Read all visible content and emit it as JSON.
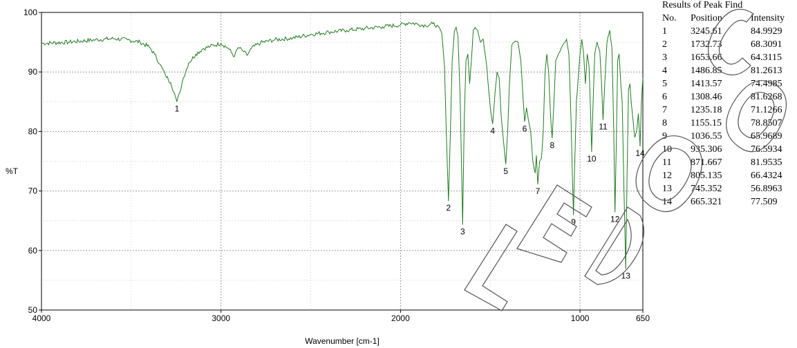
{
  "chart_data": {
    "type": "line",
    "xlabel": "Wavenumber [cm-1]",
    "ylabel": "%T",
    "xlim": [
      4000,
      650
    ],
    "ylim": [
      50,
      100
    ],
    "x_ticks": [
      4000,
      3000,
      2000,
      1000,
      650
    ],
    "y_ticks": [
      50,
      60,
      70,
      80,
      90,
      100
    ],
    "x_minor_grid": [
      3500,
      2500,
      1500
    ],
    "y_minor_grid": [
      55,
      65,
      75,
      85,
      95
    ],
    "grid": true,
    "series_color": "#1f7a1f",
    "x_reversed": true,
    "baseline_points": [
      [
        4000,
        94.8
      ],
      [
        3850,
        95.0
      ],
      [
        3700,
        95.4
      ],
      [
        3600,
        95.6
      ],
      [
        3520,
        95.4
      ],
      [
        3450,
        95.0
      ],
      [
        3400,
        94.2
      ],
      [
        3370,
        93.0
      ],
      [
        3340,
        91.3
      ],
      [
        3310,
        89.5
      ],
      [
        3280,
        88.2
      ],
      [
        3260,
        86.5
      ],
      [
        3245.61,
        84.99
      ],
      [
        3230,
        86.5
      ],
      [
        3210,
        89.0
      ],
      [
        3180,
        91.5
      ],
      [
        3140,
        93.0
      ],
      [
        3100,
        93.9
      ],
      [
        3060,
        94.3
      ],
      [
        3000,
        94.8
      ],
      [
        2960,
        94.0
      ],
      [
        2925,
        92.6
      ],
      [
        2905,
        94.1
      ],
      [
        2880,
        93.6
      ],
      [
        2855,
        92.8
      ],
      [
        2830,
        94.0
      ],
      [
        2780,
        94.9
      ],
      [
        2700,
        95.4
      ],
      [
        2600,
        95.7
      ],
      [
        2500,
        96.3
      ],
      [
        2400,
        96.7
      ],
      [
        2300,
        97.0
      ],
      [
        2200,
        97.3
      ],
      [
        2100,
        97.6
      ],
      [
        2000,
        97.9
      ],
      [
        1950,
        98.3
      ],
      [
        1900,
        98.0
      ],
      [
        1860,
        97.8
      ],
      [
        1820,
        98.1
      ],
      [
        1790,
        97.7
      ],
      [
        1770,
        96.5
      ],
      [
        1755,
        91.0
      ],
      [
        1745,
        80.0
      ],
      [
        1732.73,
        68.31
      ],
      [
        1722,
        80.0
      ],
      [
        1712,
        92.0
      ],
      [
        1700,
        96.8
      ],
      [
        1690,
        97.5
      ],
      [
        1680,
        96.0
      ],
      [
        1668,
        86.0
      ],
      [
        1653.66,
        64.31
      ],
      [
        1645,
        82.0
      ],
      [
        1635,
        92.0
      ],
      [
        1625,
        93.0
      ],
      [
        1615,
        88.0
      ],
      [
        1605,
        92.0
      ],
      [
        1595,
        97.0
      ],
      [
        1585,
        97.5
      ],
      [
        1570,
        97.0
      ],
      [
        1555,
        95.0
      ],
      [
        1540,
        95.5
      ],
      [
        1520,
        91.0
      ],
      [
        1500,
        84.0
      ],
      [
        1486.85,
        81.26
      ],
      [
        1472,
        87.0
      ],
      [
        1462,
        90.0
      ],
      [
        1450,
        89.0
      ],
      [
        1440,
        83.0
      ],
      [
        1425,
        78.0
      ],
      [
        1413.57,
        74.5
      ],
      [
        1403,
        80.0
      ],
      [
        1393,
        88.0
      ],
      [
        1380,
        94.5
      ],
      [
        1360,
        95.2
      ],
      [
        1345,
        95.0
      ],
      [
        1330,
        92.0
      ],
      [
        1318,
        86.0
      ],
      [
        1308.46,
        81.63
      ],
      [
        1298,
        84.0
      ],
      [
        1288,
        82.0
      ],
      [
        1275,
        80.0
      ],
      [
        1263,
        75.0
      ],
      [
        1250,
        73.0
      ],
      [
        1243,
        76.0
      ],
      [
        1235.18,
        71.13
      ],
      [
        1225,
        75.0
      ],
      [
        1215,
        75.5
      ],
      [
        1205,
        80.0
      ],
      [
        1195,
        90.0
      ],
      [
        1185,
        93.0
      ],
      [
        1175,
        90.0
      ],
      [
        1165,
        83.0
      ],
      [
        1155.15,
        78.85
      ],
      [
        1145,
        85.0
      ],
      [
        1135,
        92.0
      ],
      [
        1120,
        93.0
      ],
      [
        1105,
        94.0
      ],
      [
        1090,
        94.8
      ],
      [
        1075,
        95.5
      ],
      [
        1062,
        93.0
      ],
      [
        1050,
        82.0
      ],
      [
        1042,
        72.0
      ],
      [
        1036.55,
        65.97
      ],
      [
        1030,
        74.0
      ],
      [
        1020,
        85.0
      ],
      [
        1010,
        89.0
      ],
      [
        1000,
        93.0
      ],
      [
        990,
        95.5
      ],
      [
        980,
        93.0
      ],
      [
        970,
        88.0
      ],
      [
        960,
        93.0
      ],
      [
        950,
        91.0
      ],
      [
        942,
        84.0
      ],
      [
        935.31,
        76.59
      ],
      [
        928,
        84.0
      ],
      [
        918,
        93.0
      ],
      [
        905,
        95.0
      ],
      [
        890,
        93.5
      ],
      [
        880,
        88.0
      ],
      [
        871.67,
        81.95
      ],
      [
        862,
        88.0
      ],
      [
        850,
        95.0
      ],
      [
        835,
        97.0
      ],
      [
        822,
        94.0
      ],
      [
        812,
        80.0
      ],
      [
        805.14,
        66.43
      ],
      [
        798,
        78.0
      ],
      [
        790,
        92.0
      ],
      [
        782,
        93.0
      ],
      [
        773,
        88.0
      ],
      [
        765,
        85.0
      ],
      [
        755,
        70.0
      ],
      [
        745.35,
        56.9
      ],
      [
        738,
        72.0
      ],
      [
        730,
        87.0
      ],
      [
        722,
        88.0
      ],
      [
        715,
        85.0
      ],
      [
        705,
        82.0
      ],
      [
        695,
        79.0
      ],
      [
        685,
        80.0
      ],
      [
        675,
        83.0
      ],
      [
        665.32,
        77.51
      ],
      [
        658,
        85.0
      ],
      [
        650,
        89.0
      ]
    ],
    "peaks": [
      {
        "no": "1",
        "position": "3245.61",
        "intensity": "84.9929",
        "x": 3245.61,
        "y": 84.9929
      },
      {
        "no": "2",
        "position": "1732.73",
        "intensity": "68.3091",
        "x": 1732.73,
        "y": 68.3091
      },
      {
        "no": "3",
        "position": "1653.66",
        "intensity": "64.3115",
        "x": 1653.66,
        "y": 64.3115
      },
      {
        "no": "4",
        "position": "1486.85",
        "intensity": "81.2613",
        "x": 1486.85,
        "y": 81.2613
      },
      {
        "no": "5",
        "position": "1413.57",
        "intensity": "74.4985",
        "x": 1413.57,
        "y": 74.4985
      },
      {
        "no": "6",
        "position": "1308.46",
        "intensity": "81.6268",
        "x": 1308.46,
        "y": 81.6268
      },
      {
        "no": "7",
        "position": "1235.18",
        "intensity": "71.1266",
        "x": 1235.18,
        "y": 71.1266
      },
      {
        "no": "8",
        "position": "1155.15",
        "intensity": "78.8507",
        "x": 1155.15,
        "y": 78.8507
      },
      {
        "no": "9",
        "position": "1036.55",
        "intensity": "65.9689",
        "x": 1036.55,
        "y": 65.9689
      },
      {
        "no": "10",
        "position": "935.306",
        "intensity": "76.5934",
        "x": 935.306,
        "y": 76.5934
      },
      {
        "no": "11",
        "position": "871.667",
        "intensity": "81.9535",
        "x": 871.667,
        "y": 81.9535
      },
      {
        "no": "12",
        "position": "805.135",
        "intensity": "66.4324",
        "x": 805.135,
        "y": 66.4324
      },
      {
        "no": "13",
        "position": "745.352",
        "intensity": "56.8963",
        "x": 745.352,
        "y": 56.8963
      },
      {
        "no": "14",
        "position": "665.321",
        "intensity": "77.509",
        "x": 665.321,
        "y": 77.509
      }
    ]
  },
  "peak_table": {
    "title": "Results of Peak Find",
    "col_no": "No.",
    "col_position": "Position",
    "col_intensity": "Intensity"
  },
  "watermark": {
    "text": "GOLED COT",
    "color": "#555555"
  }
}
